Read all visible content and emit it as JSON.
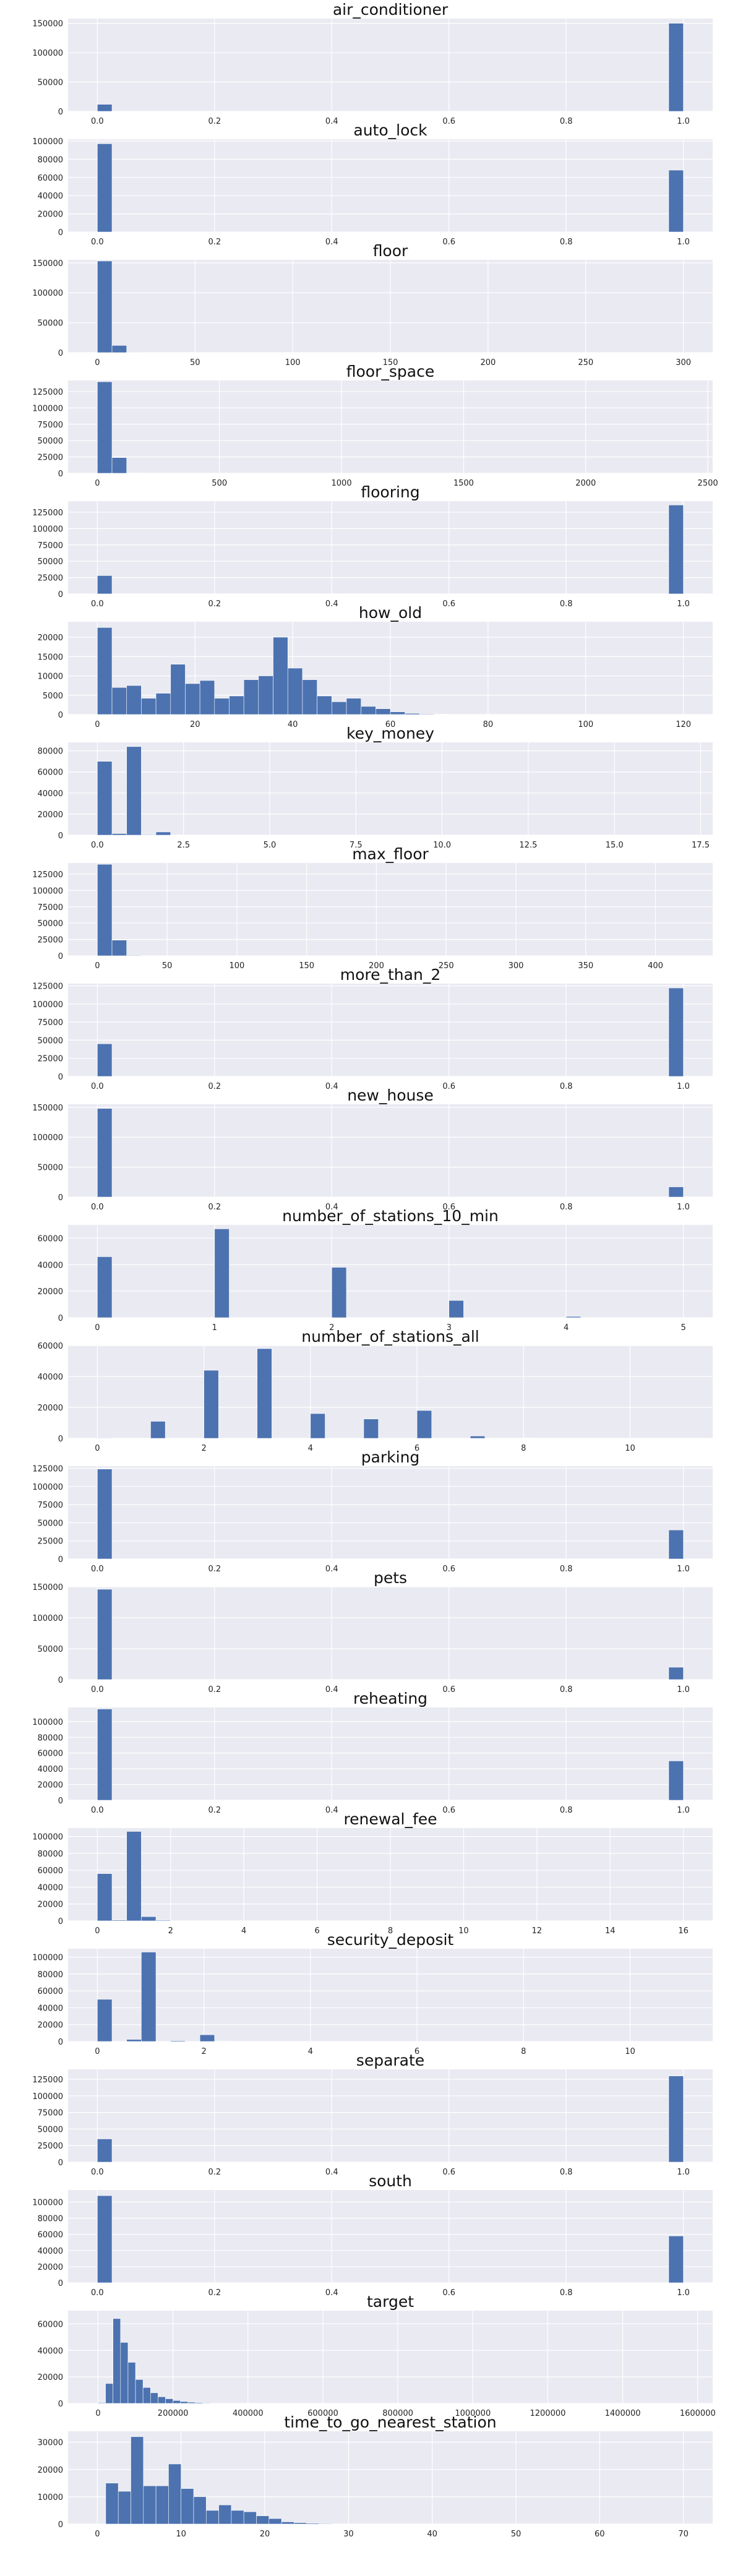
{
  "chart_data": [
    {
      "type": "bar",
      "title": "air_conditioner",
      "xlim": [
        -0.05,
        1.05
      ],
      "xticks": [
        0,
        0.2,
        0.4,
        0.6,
        0.8,
        1
      ],
      "xtick_labels": [
        "0.0",
        "0.2",
        "0.4",
        "0.6",
        "0.8",
        "1.0"
      ],
      "ylim": [
        0,
        158000
      ],
      "yticks": [
        0,
        50000,
        100000,
        150000
      ],
      "bins": [
        [
          0,
          0.025,
          12000
        ],
        [
          0.975,
          1,
          150000
        ]
      ]
    },
    {
      "type": "bar",
      "title": "auto_lock",
      "xlim": [
        -0.05,
        1.05
      ],
      "xticks": [
        0,
        0.2,
        0.4,
        0.6,
        0.8,
        1
      ],
      "xtick_labels": [
        "0.0",
        "0.2",
        "0.4",
        "0.6",
        "0.8",
        "1.0"
      ],
      "ylim": [
        0,
        102000
      ],
      "yticks": [
        0,
        20000,
        40000,
        60000,
        80000,
        100000
      ],
      "bins": [
        [
          0,
          0.025,
          97000
        ],
        [
          0.975,
          1,
          68000
        ]
      ]
    },
    {
      "type": "bar",
      "title": "floor",
      "xlim": [
        -15,
        315
      ],
      "xticks": [
        0,
        50,
        100,
        150,
        200,
        250,
        300
      ],
      "xtick_labels": [
        "0",
        "50",
        "100",
        "150",
        "200",
        "250",
        "300"
      ],
      "ylim": [
        0,
        155000
      ],
      "yticks": [
        0,
        50000,
        100000,
        150000
      ],
      "bins": [
        [
          0,
          7.5,
          153000
        ],
        [
          7.5,
          15,
          12000
        ],
        [
          15,
          22.5,
          700
        ]
      ]
    },
    {
      "type": "bar",
      "title": "floor_space",
      "xlim": [
        -120,
        2520
      ],
      "xticks": [
        0,
        500,
        1000,
        1500,
        2000,
        2500
      ],
      "xtick_labels": [
        "0",
        "500",
        "1000",
        "1500",
        "2000",
        "2500"
      ],
      "ylim": [
        0,
        142000
      ],
      "yticks": [
        0,
        25000,
        50000,
        75000,
        100000,
        125000
      ],
      "bins": [
        [
          0,
          60,
          140000
        ],
        [
          60,
          120,
          24000
        ],
        [
          120,
          180,
          500
        ]
      ]
    },
    {
      "type": "bar",
      "title": "flooring",
      "xlim": [
        -0.05,
        1.05
      ],
      "xticks": [
        0,
        0.2,
        0.4,
        0.6,
        0.8,
        1
      ],
      "xtick_labels": [
        "0.0",
        "0.2",
        "0.4",
        "0.6",
        "0.8",
        "1.0"
      ],
      "ylim": [
        0,
        142000
      ],
      "yticks": [
        0,
        25000,
        50000,
        75000,
        100000,
        125000
      ],
      "bins": [
        [
          0,
          0.025,
          28000
        ],
        [
          0.975,
          1,
          136000
        ]
      ]
    },
    {
      "type": "bar",
      "title": "how_old",
      "xlim": [
        -6,
        126
      ],
      "xticks": [
        0,
        20,
        40,
        60,
        80,
        100,
        120
      ],
      "xtick_labels": [
        "0",
        "20",
        "40",
        "60",
        "80",
        "100",
        "120"
      ],
      "ylim": [
        0,
        24000
      ],
      "yticks": [
        0,
        5000,
        10000,
        15000,
        20000
      ],
      "bins": [
        [
          0,
          3,
          22500
        ],
        [
          3,
          6,
          7000
        ],
        [
          6,
          9,
          7500
        ],
        [
          9,
          12,
          4200
        ],
        [
          12,
          15,
          5500
        ],
        [
          15,
          18,
          13000
        ],
        [
          18,
          21,
          8000
        ],
        [
          21,
          24,
          8800
        ],
        [
          24,
          27,
          4200
        ],
        [
          27,
          30,
          4800
        ],
        [
          30,
          33,
          9000
        ],
        [
          33,
          36,
          10000
        ],
        [
          36,
          39,
          20000
        ],
        [
          39,
          42,
          12000
        ],
        [
          42,
          45,
          9000
        ],
        [
          45,
          48,
          4800
        ],
        [
          48,
          51,
          3300
        ],
        [
          51,
          54,
          4200
        ],
        [
          54,
          57,
          2100
        ],
        [
          57,
          60,
          1500
        ],
        [
          60,
          63,
          700
        ],
        [
          63,
          66,
          300
        ],
        [
          66,
          69,
          150
        ],
        [
          69,
          72,
          80
        ]
      ]
    },
    {
      "type": "bar",
      "title": "key_money",
      "xlim": [
        -0.85,
        17.85
      ],
      "xticks": [
        0,
        2.5,
        5,
        7.5,
        10,
        12.5,
        15,
        17.5
      ],
      "xtick_labels": [
        "0.0",
        "2.5",
        "5.0",
        "7.5",
        "10.0",
        "12.5",
        "15.0",
        "17.5"
      ],
      "ylim": [
        0,
        88000
      ],
      "yticks": [
        0,
        20000,
        40000,
        60000,
        80000
      ],
      "bins": [
        [
          0,
          0.425,
          70000
        ],
        [
          0.425,
          0.85,
          1500
        ],
        [
          0.85,
          1.275,
          84000
        ],
        [
          1.275,
          1.7,
          500
        ],
        [
          1.7,
          2.125,
          3000
        ],
        [
          2.125,
          2.55,
          300
        ]
      ]
    },
    {
      "type": "bar",
      "title": "max_floor",
      "xlim": [
        -21,
        441
      ],
      "xticks": [
        0,
        50,
        100,
        150,
        200,
        250,
        300,
        350,
        400
      ],
      "xtick_labels": [
        "0",
        "50",
        "100",
        "150",
        "200",
        "250",
        "300",
        "350",
        "400"
      ],
      "ylim": [
        0,
        142000
      ],
      "yticks": [
        0,
        25000,
        50000,
        75000,
        100000,
        125000
      ],
      "bins": [
        [
          0,
          10.5,
          140000
        ],
        [
          10.5,
          21,
          24000
        ],
        [
          21,
          31.5,
          800
        ]
      ]
    },
    {
      "type": "bar",
      "title": "more_than_2",
      "xlim": [
        -0.05,
        1.05
      ],
      "xticks": [
        0,
        0.2,
        0.4,
        0.6,
        0.8,
        1
      ],
      "xtick_labels": [
        "0.0",
        "0.2",
        "0.4",
        "0.6",
        "0.8",
        "1.0"
      ],
      "ylim": [
        0,
        128000
      ],
      "yticks": [
        0,
        25000,
        50000,
        75000,
        100000,
        125000
      ],
      "bins": [
        [
          0,
          0.025,
          45000
        ],
        [
          0.975,
          1,
          122000
        ]
      ]
    },
    {
      "type": "bar",
      "title": "new_house",
      "xlim": [
        -0.05,
        1.05
      ],
      "xticks": [
        0,
        0.2,
        0.4,
        0.6,
        0.8,
        1
      ],
      "xtick_labels": [
        "0.0",
        "0.2",
        "0.4",
        "0.6",
        "0.8",
        "1.0"
      ],
      "ylim": [
        0,
        155000
      ],
      "yticks": [
        0,
        50000,
        100000,
        150000
      ],
      "bins": [
        [
          0,
          0.025,
          148000
        ],
        [
          0.975,
          1,
          17000
        ]
      ]
    },
    {
      "type": "bar",
      "title": "number_of_stations_10_min",
      "xlim": [
        -0.25,
        5.25
      ],
      "xticks": [
        0,
        1,
        2,
        3,
        4,
        5
      ],
      "xtick_labels": [
        "0",
        "1",
        "2",
        "3",
        "4",
        "5"
      ],
      "ylim": [
        0,
        70000
      ],
      "yticks": [
        0,
        20000,
        40000,
        60000
      ],
      "bins": [
        [
          0,
          0.125,
          46000
        ],
        [
          1,
          1.125,
          67000
        ],
        [
          2,
          2.125,
          38000
        ],
        [
          3,
          3.125,
          13000
        ],
        [
          4,
          4.125,
          900
        ],
        [
          5,
          5.125,
          150
        ]
      ]
    },
    {
      "type": "bar",
      "title": "number_of_stations_all",
      "xlim": [
        -0.55,
        11.55
      ],
      "xticks": [
        0,
        2,
        4,
        6,
        8,
        10
      ],
      "xtick_labels": [
        "0",
        "2",
        "4",
        "6",
        "8",
        "10"
      ],
      "ylim": [
        0,
        60000
      ],
      "yticks": [
        0,
        20000,
        40000,
        60000
      ],
      "bins": [
        [
          0,
          0.275,
          300
        ],
        [
          1,
          1.275,
          11000
        ],
        [
          2,
          2.275,
          44000
        ],
        [
          3,
          3.275,
          58000
        ],
        [
          4,
          4.275,
          16000
        ],
        [
          5,
          5.275,
          12500
        ],
        [
          6,
          6.275,
          18000
        ],
        [
          7,
          7.275,
          1500
        ],
        [
          8,
          8.275,
          200
        ]
      ]
    },
    {
      "type": "bar",
      "title": "parking",
      "xlim": [
        -0.05,
        1.05
      ],
      "xticks": [
        0,
        0.2,
        0.4,
        0.6,
        0.8,
        1
      ],
      "xtick_labels": [
        "0.0",
        "0.2",
        "0.4",
        "0.6",
        "0.8",
        "1.0"
      ],
      "ylim": [
        0,
        128000
      ],
      "yticks": [
        0,
        25000,
        50000,
        75000,
        100000,
        125000
      ],
      "bins": [
        [
          0,
          0.025,
          124000
        ],
        [
          0.975,
          1,
          40000
        ]
      ]
    },
    {
      "type": "bar",
      "title": "pets",
      "xlim": [
        -0.05,
        1.05
      ],
      "xticks": [
        0,
        0.2,
        0.4,
        0.6,
        0.8,
        1
      ],
      "xtick_labels": [
        "0.0",
        "0.2",
        "0.4",
        "0.6",
        "0.8",
        "1.0"
      ],
      "ylim": [
        0,
        150000
      ],
      "yticks": [
        0,
        50000,
        100000,
        150000
      ],
      "bins": [
        [
          0,
          0.025,
          146000
        ],
        [
          0.975,
          1,
          20000
        ]
      ]
    },
    {
      "type": "bar",
      "title": "reheating",
      "xlim": [
        -0.05,
        1.05
      ],
      "xticks": [
        0,
        0.2,
        0.4,
        0.6,
        0.8,
        1
      ],
      "xtick_labels": [
        "0.0",
        "0.2",
        "0.4",
        "0.6",
        "0.8",
        "1.0"
      ],
      "ylim": [
        0,
        118000
      ],
      "yticks": [
        0,
        20000,
        40000,
        60000,
        80000,
        100000
      ],
      "bins": [
        [
          0,
          0.025,
          116000
        ],
        [
          0.975,
          1,
          50000
        ]
      ]
    },
    {
      "type": "bar",
      "title": "renewal_fee",
      "xlim": [
        -0.8,
        16.8
      ],
      "xticks": [
        0,
        2,
        4,
        6,
        8,
        10,
        12,
        14,
        16
      ],
      "xtick_labels": [
        "0",
        "2",
        "4",
        "6",
        "8",
        "10",
        "12",
        "14",
        "16"
      ],
      "ylim": [
        0,
        110000
      ],
      "yticks": [
        0,
        20000,
        40000,
        60000,
        80000,
        100000
      ],
      "bins": [
        [
          0,
          0.4,
          56000
        ],
        [
          0.4,
          0.8,
          1000
        ],
        [
          0.8,
          1.2,
          106000
        ],
        [
          1.2,
          1.6,
          5000
        ],
        [
          1.6,
          2.0,
          800
        ]
      ]
    },
    {
      "type": "bar",
      "title": "security_deposit",
      "xlim": [
        -0.55,
        11.55
      ],
      "xticks": [
        0,
        2,
        4,
        6,
        8,
        10
      ],
      "xtick_labels": [
        "0",
        "2",
        "4",
        "6",
        "8",
        "10"
      ],
      "ylim": [
        0,
        110000
      ],
      "yticks": [
        0,
        20000,
        40000,
        60000,
        80000,
        100000
      ],
      "bins": [
        [
          0,
          0.275,
          50000
        ],
        [
          0.55,
          0.825,
          2500
        ],
        [
          0.825,
          1.1,
          106000
        ],
        [
          1.375,
          1.65,
          1000
        ],
        [
          1.925,
          2.2,
          8000
        ],
        [
          2.2,
          2.475,
          300
        ]
      ]
    },
    {
      "type": "bar",
      "title": "separate",
      "xlim": [
        -0.05,
        1.05
      ],
      "xticks": [
        0,
        0.2,
        0.4,
        0.6,
        0.8,
        1
      ],
      "xtick_labels": [
        "0.0",
        "0.2",
        "0.4",
        "0.6",
        "0.8",
        "1.0"
      ],
      "ylim": [
        0,
        140000
      ],
      "yticks": [
        0,
        25000,
        50000,
        75000,
        100000,
        125000
      ],
      "bins": [
        [
          0,
          0.025,
          35000
        ],
        [
          0.975,
          1,
          130000
        ]
      ]
    },
    {
      "type": "bar",
      "title": "south",
      "xlim": [
        -0.05,
        1.05
      ],
      "xticks": [
        0,
        0.2,
        0.4,
        0.6,
        0.8,
        1
      ],
      "xtick_labels": [
        "0.0",
        "0.2",
        "0.4",
        "0.6",
        "0.8",
        "1.0"
      ],
      "ylim": [
        0,
        115000
      ],
      "yticks": [
        0,
        20000,
        40000,
        60000,
        80000,
        100000
      ],
      "bins": [
        [
          0,
          0.025,
          108000
        ],
        [
          0.975,
          1,
          58000
        ]
      ]
    },
    {
      "type": "bar",
      "title": "target",
      "xlim": [
        -80000,
        1640000
      ],
      "xticks": [
        0,
        200000,
        400000,
        600000,
        800000,
        1000000,
        1200000,
        1400000,
        1600000
      ],
      "xtick_labels": [
        "0",
        "200000",
        "400000",
        "600000",
        "800000",
        "1000000",
        "1200000",
        "1400000",
        "1600000"
      ],
      "ylim": [
        0,
        70000
      ],
      "yticks": [
        0,
        20000,
        40000,
        60000
      ],
      "bins": [
        [
          0,
          20000,
          500
        ],
        [
          20000,
          40000,
          15000
        ],
        [
          40000,
          60000,
          64000
        ],
        [
          60000,
          80000,
          46000
        ],
        [
          80000,
          100000,
          31000
        ],
        [
          100000,
          120000,
          18000
        ],
        [
          120000,
          140000,
          12000
        ],
        [
          140000,
          160000,
          8000
        ],
        [
          160000,
          180000,
          5000
        ],
        [
          180000,
          200000,
          3500
        ],
        [
          200000,
          220000,
          2200
        ],
        [
          220000,
          240000,
          1400
        ],
        [
          240000,
          260000,
          900
        ],
        [
          260000,
          280000,
          600
        ],
        [
          280000,
          300000,
          400
        ]
      ]
    },
    {
      "type": "bar",
      "title": "time_to_go_nearest_station",
      "xlim": [
        -3.5,
        73.5
      ],
      "xticks": [
        0,
        10,
        20,
        30,
        40,
        50,
        60,
        70
      ],
      "xtick_labels": [
        "0",
        "10",
        "20",
        "30",
        "40",
        "50",
        "60",
        "70"
      ],
      "ylim": [
        0,
        34000
      ],
      "yticks": [
        0,
        10000,
        20000,
        30000
      ],
      "bins": [
        [
          1,
          2.5,
          15000
        ],
        [
          2.5,
          4,
          12000
        ],
        [
          4,
          5.5,
          32000
        ],
        [
          5.5,
          7,
          14000
        ],
        [
          7,
          8.5,
          14000
        ],
        [
          8.5,
          10,
          22000
        ],
        [
          10,
          11.5,
          13000
        ],
        [
          11.5,
          13,
          10000
        ],
        [
          13,
          14.5,
          5000
        ],
        [
          14.5,
          16,
          7000
        ],
        [
          16,
          17.5,
          5000
        ],
        [
          17.5,
          19,
          4500
        ],
        [
          19,
          20.5,
          3000
        ],
        [
          20.5,
          22,
          2000
        ],
        [
          22,
          23.5,
          800
        ],
        [
          23.5,
          25,
          500
        ],
        [
          25,
          26.5,
          300
        ],
        [
          26.5,
          28,
          200
        ],
        [
          28,
          29.5,
          100
        ]
      ]
    }
  ]
}
